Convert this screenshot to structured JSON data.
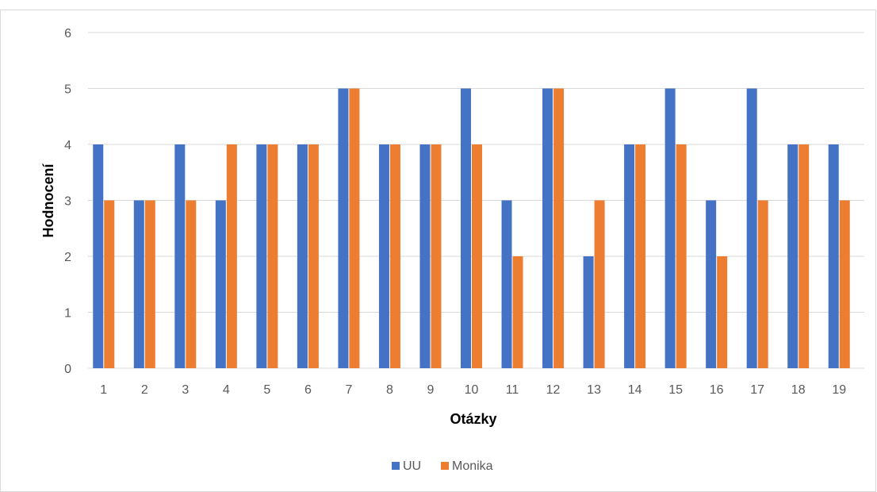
{
  "chart_data": {
    "type": "bar",
    "categories": [
      "1",
      "2",
      "3",
      "4",
      "5",
      "6",
      "7",
      "8",
      "9",
      "10",
      "11",
      "12",
      "13",
      "14",
      "15",
      "16",
      "17",
      "18",
      "19"
    ],
    "series": [
      {
        "name": "UU",
        "color": "#4472C4",
        "values": [
          4,
          3,
          4,
          3,
          4,
          4,
          5,
          4,
          4,
          5,
          3,
          5,
          2,
          4,
          5,
          3,
          5,
          4,
          4
        ]
      },
      {
        "name": "Monika",
        "color": "#ED7D31",
        "values": [
          3,
          3,
          3,
          4,
          4,
          4,
          5,
          4,
          4,
          4,
          2,
          5,
          3,
          4,
          4,
          2,
          3,
          4,
          3
        ]
      }
    ],
    "title": "",
    "xlabel": "Otázky",
    "ylabel": "Hodnocení",
    "ylim": [
      0,
      6
    ],
    "yticks": [
      "0",
      "1",
      "2",
      "3",
      "4",
      "5",
      "6"
    ],
    "grid": true,
    "legend_position": "bottom"
  }
}
